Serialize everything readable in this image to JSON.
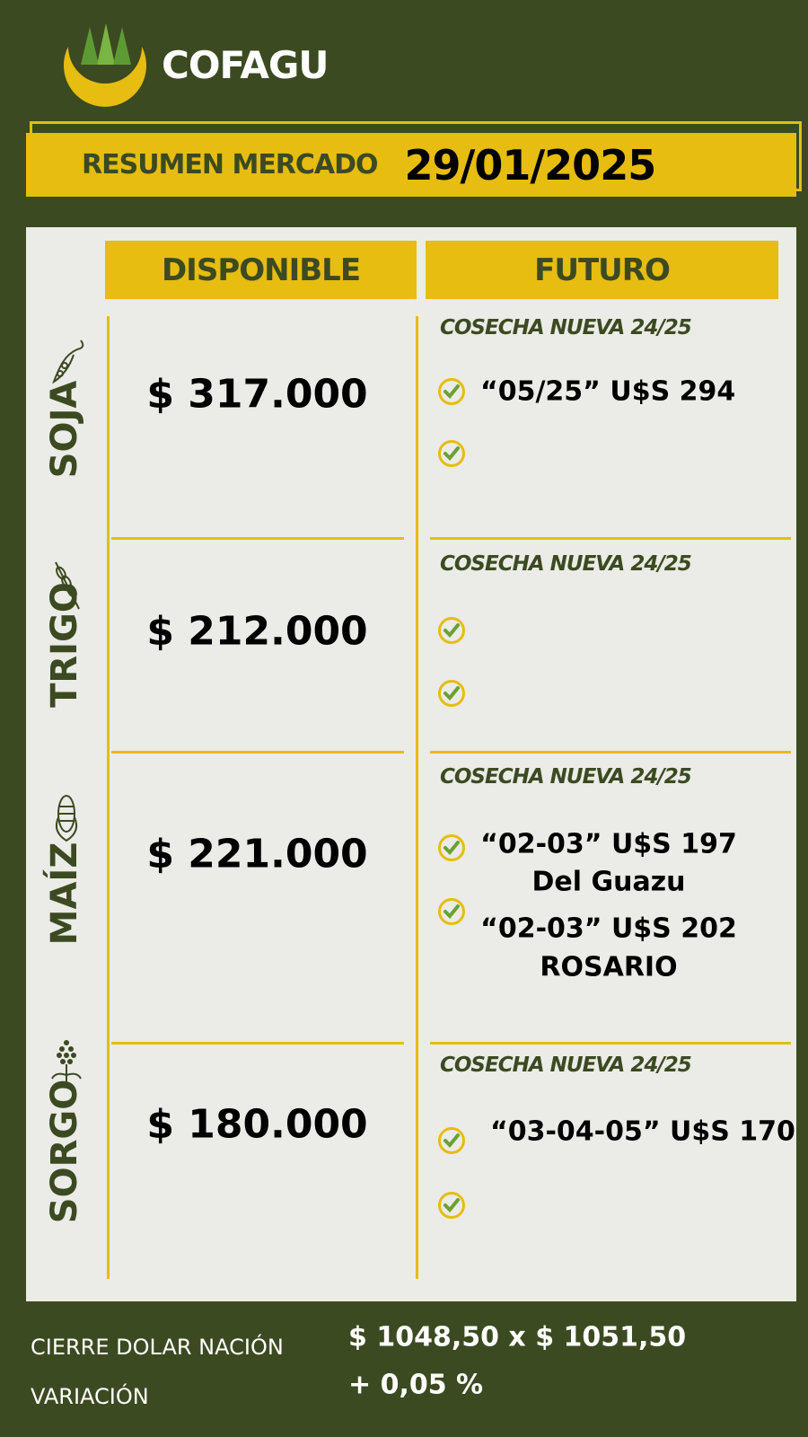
{
  "brand": {
    "name": "COFAGU",
    "logo_colors": [
      "#e6bd10",
      "#5e9a34"
    ]
  },
  "banner": {
    "title": "RESUMEN MERCADO",
    "date": "29/01/2025"
  },
  "headers": {
    "disponible": "DISPONIBLE",
    "futuro": "FUTURO"
  },
  "crops": [
    {
      "name": "SOJA",
      "icon": "soy-icon",
      "price": "$ 317.000",
      "cosecha": "COSECHA NUEVA 24/25",
      "futuros": [
        "“05/25” U$S 294",
        ""
      ]
    },
    {
      "name": "TRIGO",
      "icon": "wheat-icon",
      "price": "$ 212.000",
      "cosecha": "COSECHA NUEVA 24/25",
      "futuros": [
        "",
        ""
      ]
    },
    {
      "name": "MAÍZ",
      "icon": "corn-icon",
      "price": "$ 221.000",
      "cosecha": "COSECHA NUEVA 24/25",
      "futuros": [
        "“02-03” U$S 197",
        "Del Guazu",
        "“02-03” U$S 202",
        "ROSARIO"
      ]
    },
    {
      "name": "SORGO",
      "icon": "sorghum-icon",
      "price": "$ 180.000",
      "cosecha": "COSECHA NUEVA 24/25",
      "futuros": [
        "“03-04-05” U$S 170",
        ""
      ]
    }
  ],
  "footer": {
    "dolar_label": "CIERRE DOLAR NACIÓN",
    "dolar_value": "$ 1048,50 x $ 1051,50",
    "variacion_label": "VARIACIÓN",
    "variacion_value": "+ 0,05 %"
  },
  "colors": {
    "background": "#3c4a21",
    "accent": "#e6bd10",
    "panel": "#ebebe7",
    "check": "#6aa232"
  }
}
